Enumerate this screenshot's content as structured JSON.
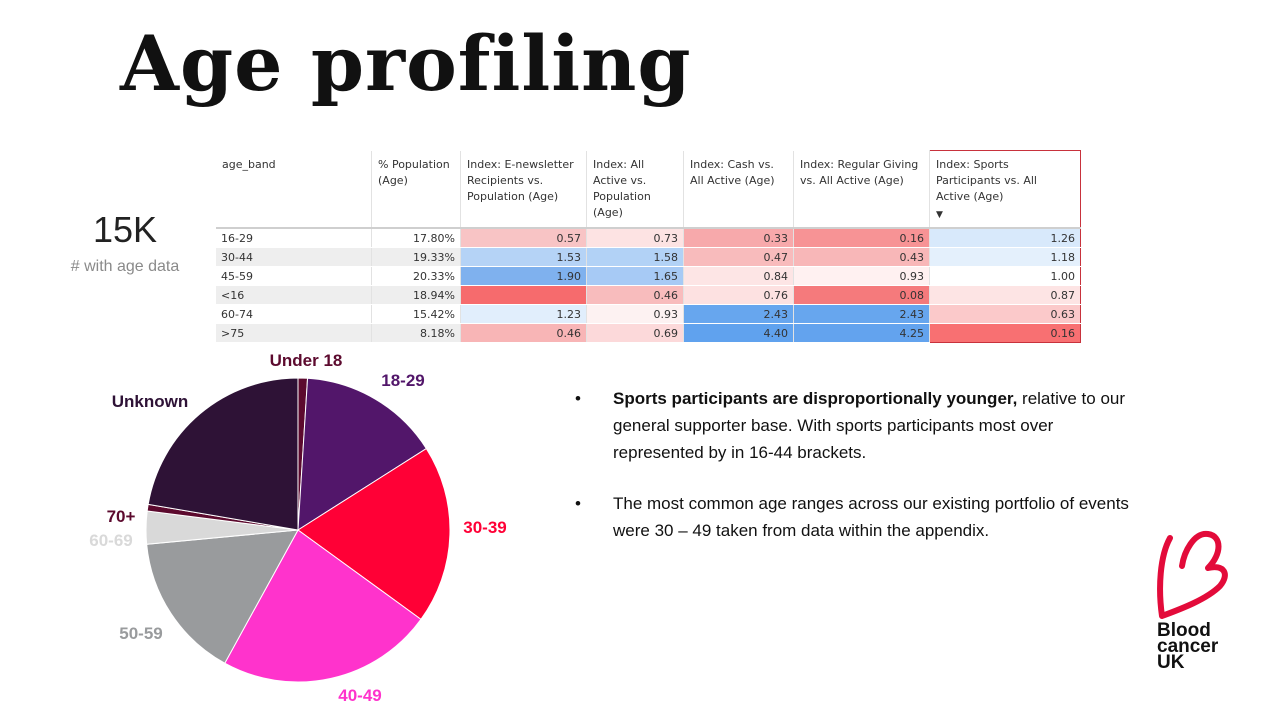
{
  "title": "Age profiling",
  "kpi": {
    "value": "15K",
    "label": "# with age data"
  },
  "table": {
    "columns": [
      "age_band",
      "% Population (Age)",
      "Index: E-newsletter Recipients vs. Population (Age)",
      "Index: All Active vs. Population (Age)",
      "Index: Cash vs. All Active (Age)",
      "Index: Regular Giving vs. All Active (Age)",
      "Index: Sports Participants vs. All Active (Age)"
    ],
    "sort_indicator": "▼",
    "rows": [
      {
        "band": "16-29",
        "pop": "17.80%",
        "v": [
          "0.57",
          "0.73",
          "0.33",
          "0.16",
          "1.26"
        ],
        "c": [
          "#f8c4c5",
          "#fde3e3",
          "#f7a9ab",
          "#f79395",
          "#d8e9fb"
        ]
      },
      {
        "band": "30-44",
        "pop": "19.33%",
        "v": [
          "1.53",
          "1.58",
          "0.47",
          "0.43",
          "1.18"
        ],
        "c": [
          "#b5d3f6",
          "#b2d2f6",
          "#f8bbbc",
          "#f8b7b8",
          "#e4f0fc"
        ]
      },
      {
        "band": "45-59",
        "pop": "20.33%",
        "v": [
          "1.90",
          "1.65",
          "0.84",
          "0.93",
          "1.00"
        ],
        "c": [
          "#7fb1ee",
          "#a7caf5",
          "#fde5e5",
          "#fff1f1",
          "#ffffff"
        ]
      },
      {
        "band": "<16",
        "pop": "18.94%",
        "v": [
          "",
          "0.46",
          "0.76",
          "0.08",
          "0.87"
        ],
        "c": [
          "#f66b6d",
          "#f8bcbd",
          "#fde1e1",
          "#f57a7c",
          "#fde4e4"
        ]
      },
      {
        "band": "60-74",
        "pop": "15.42%",
        "v": [
          "1.23",
          "0.93",
          "2.43",
          "2.43",
          "0.63"
        ],
        "c": [
          "#e1eefc",
          "#fdf2f2",
          "#67a6ee",
          "#67a6ee",
          "#fbc9ca"
        ]
      },
      {
        "band": ">75",
        "pop": "8.18%",
        "v": [
          "0.46",
          "0.69",
          "4.40",
          "4.25",
          "0.16"
        ],
        "c": [
          "#f8b5b6",
          "#fcd9da",
          "#60a2ee",
          "#63a3ee",
          "#f87072"
        ]
      }
    ]
  },
  "chart_data": {
    "type": "pie",
    "slices": [
      {
        "label": "Under 18",
        "value": 1.0,
        "color": "#5c0a2e"
      },
      {
        "label": "18-29",
        "value": 15.0,
        "color": "#52166a"
      },
      {
        "label": "30-39",
        "value": 19.0,
        "color": "#ff0036"
      },
      {
        "label": "40-49",
        "value": 23.0,
        "color": "#ff33cc"
      },
      {
        "label": "50-59",
        "value": 15.5,
        "color": "#999b9d"
      },
      {
        "label": "60-69",
        "value": 3.5,
        "color": "#d9d9d9"
      },
      {
        "label": "70+",
        "value": 0.7,
        "color": "#5c0a2e"
      },
      {
        "label": "Unknown",
        "value": 22.3,
        "color": "#2e1236"
      }
    ],
    "label_colors": [
      "#5c0a2e",
      "#52166a",
      "#ff0036",
      "#ff33cc",
      "#999b9d",
      "#d9d9d9",
      "#5c0a2e",
      "#2e1236"
    ]
  },
  "bullets": [
    {
      "strong": "Sports participants are disproportionally younger,",
      "text": " relative to our general supporter base. With sports participants most over represented by in 16-44 brackets."
    },
    {
      "strong": "",
      "text": "The most common age ranges across our existing portfolio of events were 30 – 49 taken from data within the appendix."
    }
  ],
  "logo": {
    "lines": [
      "Blood",
      "cancer",
      "UK"
    ],
    "color": "#e30b3a"
  }
}
